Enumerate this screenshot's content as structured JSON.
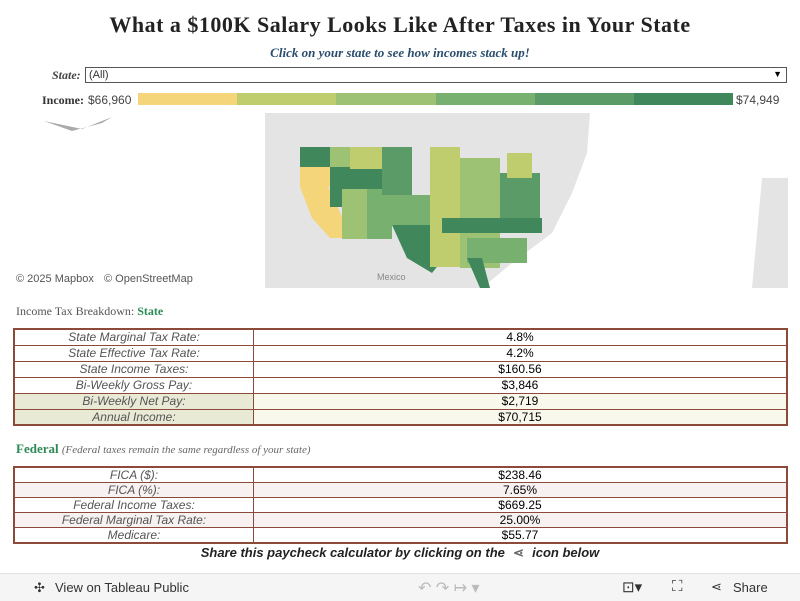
{
  "header": {
    "title": "What a $100K Salary Looks Like After Taxes in Your State",
    "subtitle": "Click on your state to see how incomes stack up!"
  },
  "filter": {
    "label": "State:",
    "value": "(All)"
  },
  "legend": {
    "label": "Income:",
    "min": "$66,960",
    "max": "$74,949",
    "colors": [
      "#f5d57a",
      "#bfcd6f",
      "#9dc274",
      "#78b06f",
      "#5b9b67",
      "#40885b"
    ]
  },
  "map": {
    "attribution": [
      "© 2025 Mapbox",
      "© OpenStreetMap"
    ],
    "place_label": "Mexico"
  },
  "state_section": {
    "title": "Income Tax Breakdown:",
    "highlight": "State"
  },
  "state_table": {
    "rows": [
      [
        "State Marginal Tax Rate:",
        "4.8%"
      ],
      [
        "State Effective Tax Rate:",
        "4.2%"
      ],
      [
        "State Income Taxes:",
        "$160.56"
      ],
      [
        "Bi-Weekly Gross Pay:",
        "$3,846"
      ],
      [
        "Bi-Weekly Net Pay:",
        "$2,719"
      ],
      [
        "Annual Income:",
        "$70,715"
      ]
    ]
  },
  "federal_section": {
    "title": "Federal",
    "note": "(Federal taxes remain the same regardless of your state)"
  },
  "federal_table": {
    "rows": [
      [
        "FICA ($):",
        "$238.46"
      ],
      [
        "FICA (%):",
        "7.65%"
      ],
      [
        "Federal Income Taxes:",
        "$669.25"
      ],
      [
        "Federal Marginal Tax Rate:",
        "25.00%"
      ],
      [
        "Medicare:",
        "$55.77"
      ]
    ]
  },
  "share": {
    "before": "Share this paycheck calculator by clicking on the",
    "after": "icon below"
  },
  "toolbar": {
    "view": "View on Tableau Public",
    "share": "Share"
  }
}
